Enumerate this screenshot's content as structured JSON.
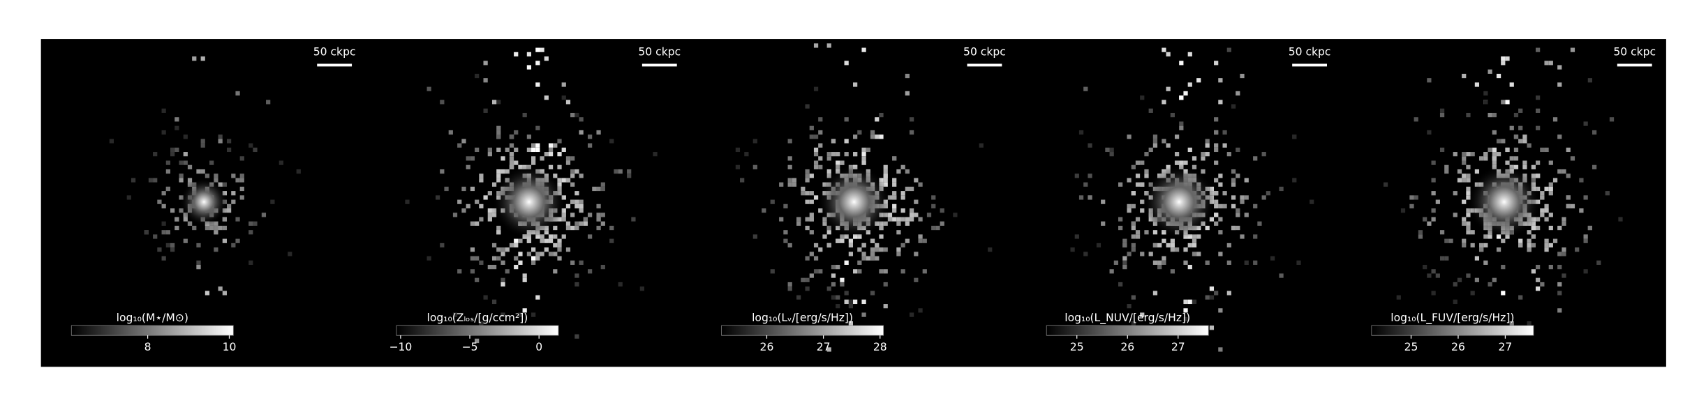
{
  "chart_data": [
    {
      "type": "image",
      "scalebar": "50 ckpc",
      "colorbar_label": "log₁₀(M⋆/M⊙)",
      "clim": [
        6.13,
        10.1
      ],
      "cticks": [
        8,
        10
      ]
    },
    {
      "type": "image",
      "scalebar": "50 ckpc",
      "colorbar_label": "log₁₀(Zₗₒₛ/[g/ccm²])",
      "clim": [
        -10.3,
        1.4
      ],
      "cticks": [
        {
          "value": -10,
          "label": "−10"
        },
        {
          "value": -5,
          "label": "−5"
        },
        0
      ]
    },
    {
      "type": "image",
      "scalebar": "50 ckpc",
      "colorbar_label": "log₁₀(Lᵥ/[erg/s/Hz])",
      "clim": [
        25.2,
        28.06
      ],
      "cticks": [
        26,
        27,
        28
      ]
    },
    {
      "type": "image",
      "scalebar": "50 ckpc",
      "colorbar_label": "log₁₀(L_NUV/[erg/s/Hz])",
      "clim": [
        24.4,
        27.6
      ],
      "cticks": [
        25,
        26,
        27
      ]
    },
    {
      "type": "image",
      "scalebar": "50 ckpc",
      "colorbar_label": "log₁₀(L_FUV/[erg/s/Hz])",
      "clim": [
        24.16,
        27.6
      ],
      "cticks": [
        25,
        26,
        27
      ]
    }
  ]
}
